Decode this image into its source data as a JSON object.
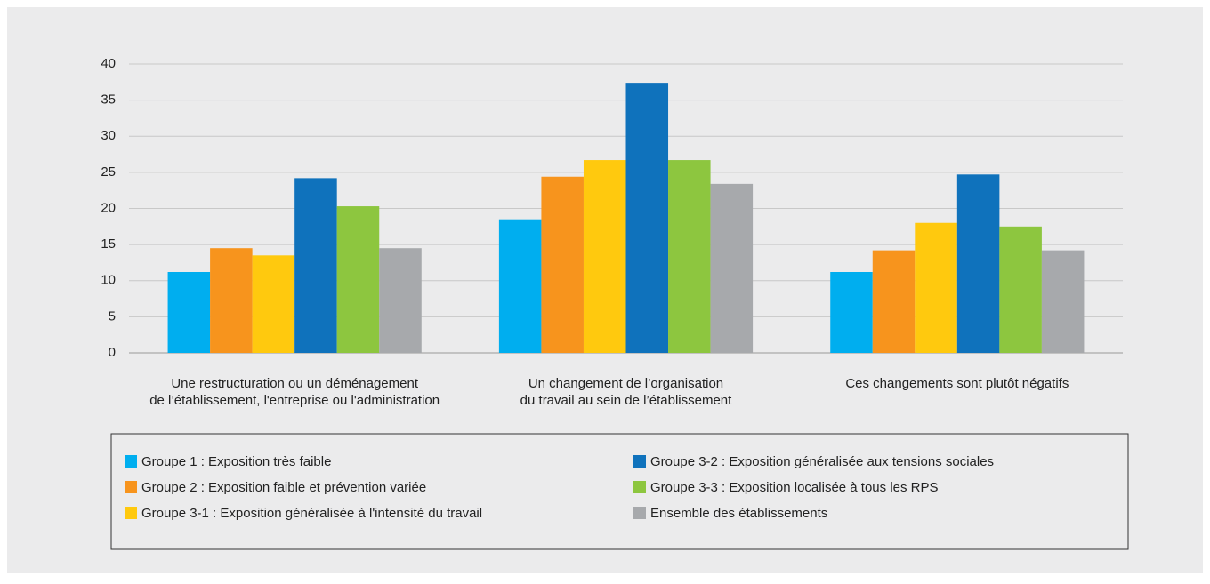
{
  "chart_data": {
    "type": "bar",
    "categories": [
      [
        "Une restructuration ou un déménagement",
        "de l’établissement, l'entreprise ou l'administration"
      ],
      [
        "Un changement de l’organisation",
        "du travail au sein de l’établissement"
      ],
      [
        "Ces changements sont plutôt négatifs"
      ]
    ],
    "series": [
      {
        "name": "Groupe 1 : Exposition très faible",
        "color": "#00aeef",
        "values": [
          11.2,
          18.5,
          11.2
        ]
      },
      {
        "name": "Groupe 2 : Exposition faible et prévention variée",
        "color": "#f7941d",
        "values": [
          14.5,
          24.4,
          14.2
        ]
      },
      {
        "name": "Groupe 3-1 : Exposition généralisée à l'intensité du travail",
        "color": "#ffc90e",
        "values": [
          13.5,
          26.7,
          18.0
        ]
      },
      {
        "name": "Groupe 3-2 : Exposition généralisée aux tensions sociales",
        "color": "#0f72bc",
        "values": [
          24.2,
          37.4,
          24.7
        ]
      },
      {
        "name": "Groupe 3-3 : Exposition localisée à tous les RPS",
        "color": "#8dc63f",
        "values": [
          20.3,
          26.7,
          17.5
        ]
      },
      {
        "name": "Ensemble des établissements",
        "color": "#a7a9ac",
        "values": [
          14.5,
          23.4,
          14.2
        ]
      }
    ],
    "ylim": [
      0,
      40
    ],
    "yticks": [
      0,
      5,
      10,
      15,
      20,
      25,
      30,
      35,
      40
    ],
    "grid": true
  }
}
